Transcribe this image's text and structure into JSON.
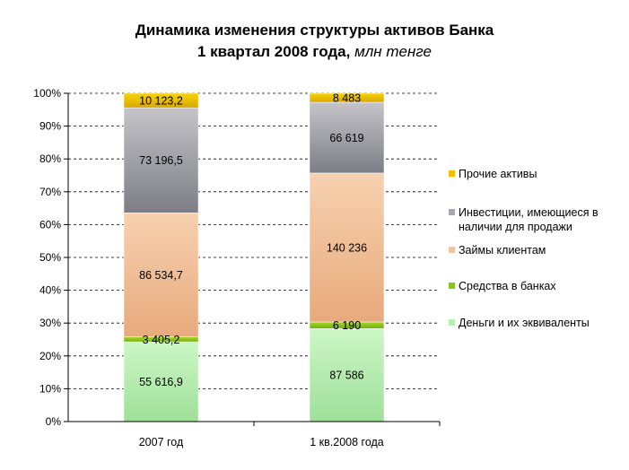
{
  "title": {
    "line1": "Динамика изменения структуры активов Банка",
    "line2_main": "1 квартал 2008 года,",
    "line2_unit": "млн  тенге"
  },
  "chart_data": {
    "type": "bar",
    "stacked": "percent",
    "categories": [
      "2007 год",
      "1 кв.2008 года"
    ],
    "yticks": [
      "0%",
      "10%",
      "20%",
      "30%",
      "40%",
      "50%",
      "60%",
      "70%",
      "80%",
      "90%",
      "100%"
    ],
    "ylim": [
      0,
      100
    ],
    "grid": true,
    "legend_position": "right",
    "series": [
      {
        "name": "Деньги и их эквиваленты",
        "values": [
          55616.9,
          87586
        ],
        "labels": [
          "55 616,9",
          "87 586"
        ],
        "color": "#b9efb4"
      },
      {
        "name": "Средства в банках",
        "values": [
          3405.2,
          6190
        ],
        "labels": [
          "3 405,2",
          "6 190"
        ],
        "color": "#8cc61c"
      },
      {
        "name": "Займы клиентам",
        "values": [
          86534.7,
          140236
        ],
        "labels": [
          "86 534,7",
          "140 236"
        ],
        "color": "#f3c49d"
      },
      {
        "name": "Инвестиции, имеющиеся в наличии для продажи",
        "values": [
          73196.5,
          66619
        ],
        "labels": [
          "73 196,5",
          "66 619"
        ],
        "color": "#a8a8ae"
      },
      {
        "name": "Прочие активы",
        "values": [
          10123.2,
          8483
        ],
        "labels": [
          "10 123,2",
          "8 483"
        ],
        "color": "#f0c000"
      }
    ]
  }
}
